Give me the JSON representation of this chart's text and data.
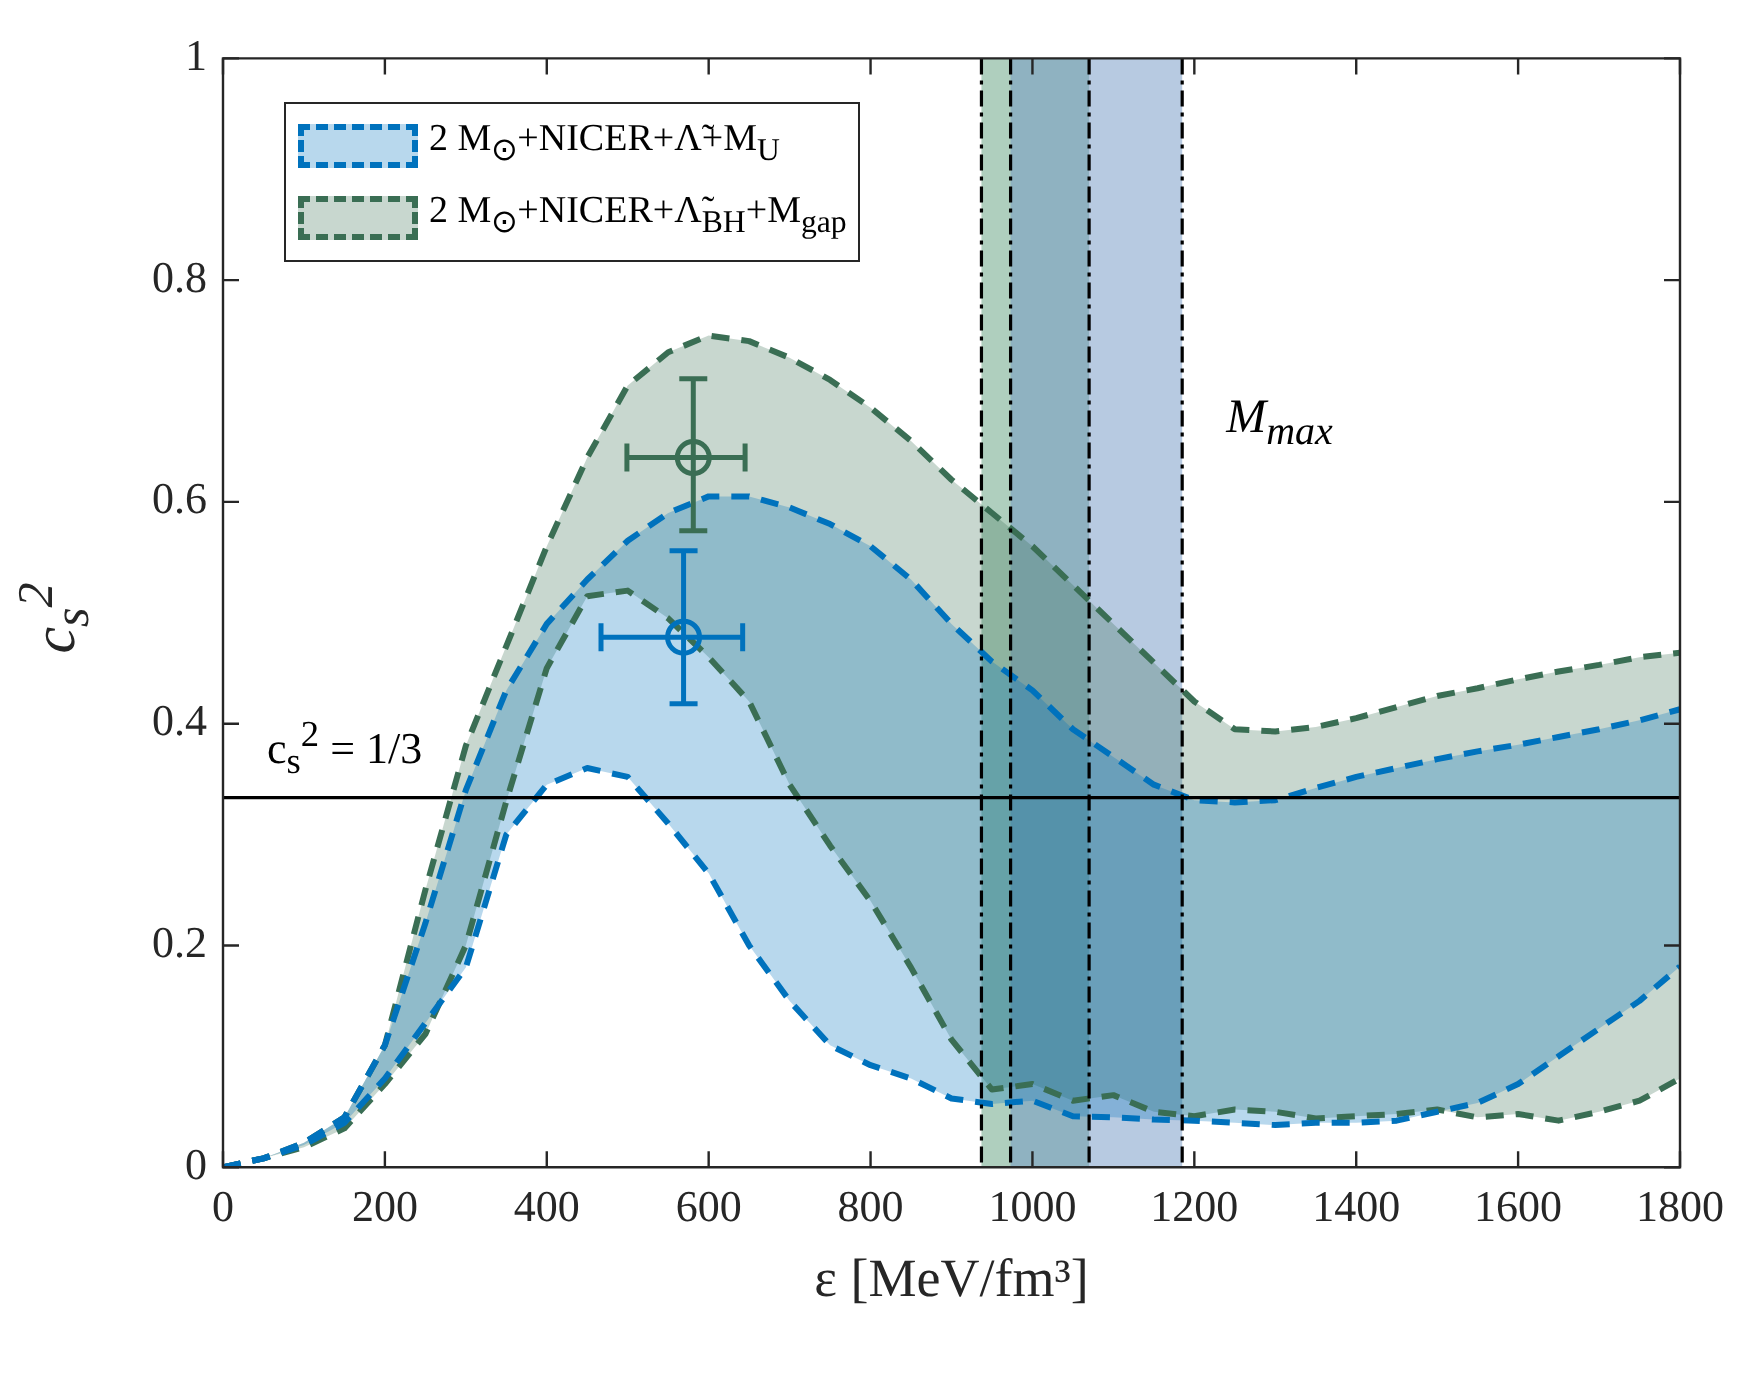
{
  "chart_data": {
    "type": "line",
    "xlabel": "ε [MeV/fm³]",
    "ylabel": "c$_{s}$$^{2}$",
    "xlim": [
      0,
      1800
    ],
    "ylim": [
      0,
      1
    ],
    "xticks": [
      0,
      200,
      400,
      600,
      800,
      1000,
      1200,
      1400,
      1600,
      1800
    ],
    "yticks": [
      0,
      0.2,
      0.4,
      0.6,
      0.8,
      1
    ],
    "grid": false,
    "legend": "top left",
    "line_style": "dashed",
    "x": [
      0,
      50,
      100,
      150,
      200,
      250,
      300,
      350,
      400,
      450,
      500,
      550,
      600,
      650,
      700,
      750,
      800,
      850,
      900,
      950,
      1000,
      1050,
      1100,
      1150,
      1200,
      1250,
      1300,
      1350,
      1400,
      1450,
      1500,
      1550,
      1600,
      1650,
      1700,
      1750,
      1800
    ],
    "series": [
      {
        "name": "2 M$_{⊙}$+NICER+Λ̃+M$_{U}$",
        "color": "#0072bd",
        "marker": "none",
        "values": [
          0,
          0.008,
          0.022,
          0.045,
          0.11,
          0.22,
          0.34,
          0.43,
          0.49,
          0.53,
          0.565,
          0.59,
          0.605,
          0.605,
          0.595,
          0.58,
          0.56,
          0.53,
          0.49,
          0.456,
          0.43,
          0.395,
          0.37,
          0.345,
          0.331,
          0.329,
          0.331,
          0.342,
          0.352,
          0.36,
          0.368,
          0.375,
          0.381,
          0.388,
          0.395,
          0.403,
          0.413
        ],
        "lower": [
          0,
          0.008,
          0.02,
          0.04,
          0.08,
          0.13,
          0.18,
          0.3,
          0.345,
          0.36,
          0.352,
          0.31,
          0.265,
          0.2,
          0.15,
          0.11,
          0.092,
          0.08,
          0.062,
          0.057,
          0.06,
          0.046,
          0.045,
          0.043,
          0.042,
          0.04,
          0.038,
          0.04,
          0.04,
          0.042,
          0.05,
          0.058,
          0.075,
          0.1,
          0.125,
          0.15,
          0.181
        ],
        "upper": [
          0,
          0.008,
          0.022,
          0.045,
          0.11,
          0.22,
          0.34,
          0.43,
          0.49,
          0.53,
          0.565,
          0.59,
          0.605,
          0.605,
          0.595,
          0.58,
          0.56,
          0.53,
          0.49,
          0.456,
          0.43,
          0.395,
          0.37,
          0.345,
          0.331,
          0.329,
          0.331,
          0.342,
          0.352,
          0.36,
          0.368,
          0.375,
          0.381,
          0.388,
          0.395,
          0.403,
          0.413
        ]
      },
      {
        "color": "#0072bd",
        "marker": "none",
        "values": [
          0,
          0.008,
          0.02,
          0.04,
          0.08,
          0.13,
          0.18,
          0.3,
          0.345,
          0.36,
          0.352,
          0.31,
          0.265,
          0.2,
          0.15,
          0.11,
          0.092,
          0.08,
          0.062,
          0.057,
          0.06,
          0.046,
          0.045,
          0.043,
          0.042,
          0.04,
          0.038,
          0.04,
          0.04,
          0.042,
          0.05,
          0.058,
          0.075,
          0.1,
          0.125,
          0.15,
          0.181
        ]
      },
      {
        "name": "2 M$_{⊙}$+NICER+Λ̃$_{BH}$+M$_{gap}$",
        "color": "#3a6e54",
        "marker": "none",
        "values": [
          0,
          0.008,
          0.022,
          0.045,
          0.11,
          0.25,
          0.38,
          0.47,
          0.56,
          0.64,
          0.705,
          0.735,
          0.75,
          0.745,
          0.73,
          0.71,
          0.685,
          0.655,
          0.62,
          0.59,
          0.56,
          0.525,
          0.49,
          0.455,
          0.42,
          0.395,
          0.393,
          0.397,
          0.405,
          0.415,
          0.425,
          0.432,
          0.44,
          0.447,
          0.453,
          0.46,
          0.464
        ],
        "lower": [
          0,
          0.008,
          0.018,
          0.035,
          0.075,
          0.12,
          0.2,
          0.33,
          0.45,
          0.515,
          0.52,
          0.495,
          0.46,
          0.42,
          0.345,
          0.29,
          0.24,
          0.18,
          0.115,
          0.07,
          0.075,
          0.06,
          0.065,
          0.05,
          0.046,
          0.052,
          0.05,
          0.044,
          0.046,
          0.048,
          0.052,
          0.045,
          0.048,
          0.042,
          0.05,
          0.06,
          0.08
        ],
        "upper": [
          0,
          0.008,
          0.022,
          0.045,
          0.11,
          0.25,
          0.38,
          0.47,
          0.56,
          0.64,
          0.705,
          0.735,
          0.75,
          0.745,
          0.73,
          0.71,
          0.685,
          0.655,
          0.62,
          0.59,
          0.56,
          0.525,
          0.49,
          0.455,
          0.42,
          0.395,
          0.393,
          0.397,
          0.405,
          0.415,
          0.425,
          0.432,
          0.44,
          0.447,
          0.453,
          0.46,
          0.464
        ]
      },
      {
        "color": "#3a6e54",
        "marker": "none",
        "values": [
          0,
          0.008,
          0.018,
          0.035,
          0.075,
          0.12,
          0.2,
          0.33,
          0.45,
          0.515,
          0.52,
          0.495,
          0.46,
          0.42,
          0.345,
          0.29,
          0.24,
          0.18,
          0.115,
          0.07,
          0.075,
          0.06,
          0.065,
          0.05,
          0.046,
          0.052,
          0.05,
          0.044,
          0.046,
          0.048,
          0.052,
          0.045,
          0.048,
          0.042,
          0.05,
          0.06,
          0.08
        ]
      },
      {
        "type": "scatter",
        "color": "#3a6e54",
        "marker": "circle",
        "x": [
          581
        ],
        "values": [
          0.64
        ],
        "errors": [
          [
            0.574,
            0.711
          ]
        ],
        "xerrors": [
          [
            499,
            645
          ]
        ]
      },
      {
        "type": "scatter",
        "color": "#0072bd",
        "marker": "circle",
        "x": [
          569
        ],
        "values": [
          0.478
        ],
        "errors": [
          [
            0.418,
            0.556
          ]
        ],
        "xerrors": [
          [
            467,
            642
          ]
        ]
      }
    ],
    "ref_lines": [
      {
        "axis": "y",
        "value": 0.3333,
        "color": "#000000"
      }
    ],
    "bands": [
      {
        "axis": "x",
        "from": 937,
        "to": 1070,
        "color": "#5fa07e"
      },
      {
        "axis": "x",
        "from": 973,
        "to": 1185,
        "color": "#6f96c4"
      }
    ],
    "annotations": [
      {
        "text": "c$_{s}$$^{2}$ = 1/3",
        "y": 0.3333
      },
      "M$_{max}$"
    ]
  }
}
